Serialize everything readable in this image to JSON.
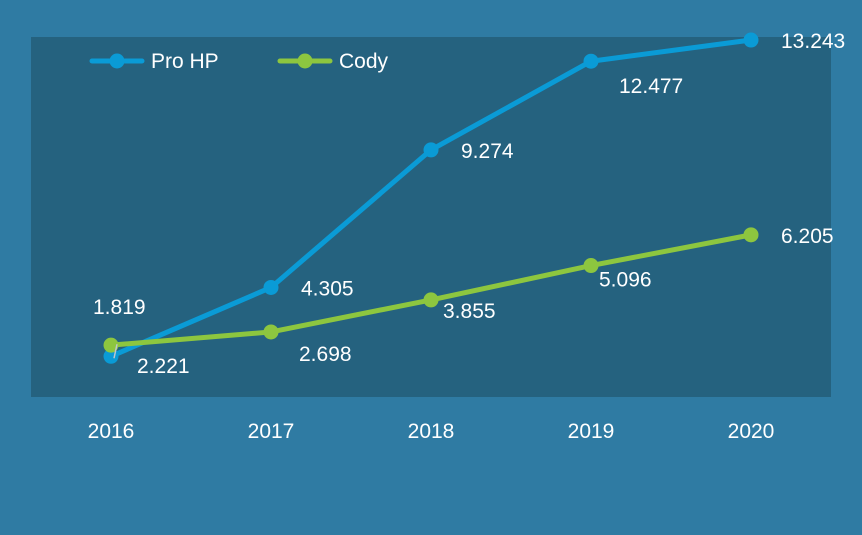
{
  "chart_data": {
    "type": "line",
    "categories": [
      "2016",
      "2017",
      "2018",
      "2019",
      "2020"
    ],
    "series": [
      {
        "name": "Pro HP",
        "values": [
          1.819,
          4.305,
          9.274,
          12.477,
          13.243
        ],
        "color": "#0a9bd6"
      },
      {
        "name": "Cody",
        "values": [
          2.221,
          2.698,
          3.855,
          5.096,
          6.205
        ],
        "color": "#8dc63f"
      }
    ],
    "value_labels": {
      "Pro HP": [
        "1.819",
        "4.305",
        "9.274",
        "12.477",
        "13.243"
      ],
      "Cody": [
        "2.221",
        "2.698",
        "3.855",
        "5.096",
        "6.205"
      ]
    },
    "ylim": [
      -2,
      14.4
    ],
    "grid": false,
    "legend": "top-left",
    "plot_background": "#25627f",
    "page_background": "#2f7ba3",
    "text_color": "#ffffff"
  }
}
